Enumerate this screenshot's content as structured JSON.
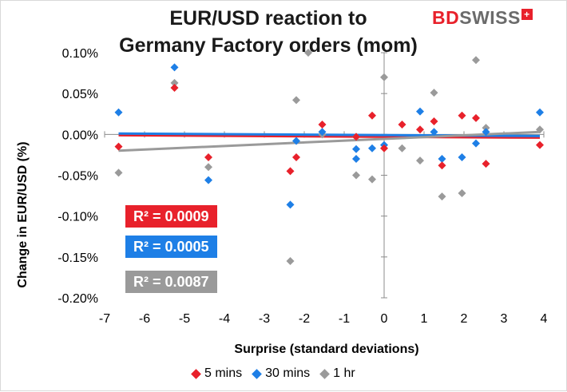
{
  "title_line1": "EUR/USD reaction to",
  "title_line2": "Germany Factory orders (mom)",
  "logo": {
    "bd": "BD",
    "swiss": "SWISS",
    "plus": "+"
  },
  "r2_labels": [
    {
      "text": "R² = 0.0009",
      "color": "#e8212b"
    },
    {
      "text": "R² = 0.0005",
      "color": "#1e7fe6"
    },
    {
      "text": "R² = 0.0087",
      "color": "#9a9a9a"
    }
  ],
  "chart_data": {
    "type": "scatter",
    "title": "EUR/USD reaction to Germany Factory orders (mom)",
    "xlabel": "Surprise (standard deviations)",
    "ylabel": "Change in EUR/USD  (%)",
    "xlim": [
      -7,
      4
    ],
    "ylim": [
      -0.2,
      0.1
    ],
    "xticks": [
      "-7",
      "-6",
      "-5",
      "-4",
      "-3",
      "-2",
      "-1",
      "0",
      "1",
      "2",
      "3",
      "4"
    ],
    "yticks": [
      "0.10%",
      "0.05%",
      "0.00%",
      "-0.05%",
      "-0.10%",
      "-0.15%",
      "-0.20%"
    ],
    "legend_position": "bottom",
    "grid": false,
    "series": [
      {
        "name": "5 mins",
        "color": "#e8212b",
        "points": [
          [
            -6.65,
            -0.015
          ],
          [
            -5.25,
            0.057
          ],
          [
            -4.4,
            -0.028
          ],
          [
            -2.35,
            -0.045
          ],
          [
            -2.2,
            -0.028
          ],
          [
            -1.55,
            0.012
          ],
          [
            -0.7,
            -0.003
          ],
          [
            -0.3,
            0.023
          ],
          [
            0.0,
            -0.017
          ],
          [
            0.45,
            0.012
          ],
          [
            0.9,
            0.006
          ],
          [
            1.25,
            0.016
          ],
          [
            1.45,
            -0.038
          ],
          [
            1.95,
            0.023
          ],
          [
            2.3,
            0.02
          ],
          [
            2.55,
            -0.036
          ],
          [
            3.9,
            -0.013
          ]
        ],
        "trend": [
          [
            -6.65,
            -0.001
          ],
          [
            3.9,
            -0.004
          ]
        ]
      },
      {
        "name": "30 mins",
        "color": "#1e7fe6",
        "points": [
          [
            -6.65,
            0.027
          ],
          [
            -5.25,
            0.082
          ],
          [
            -4.4,
            -0.056
          ],
          [
            -2.35,
            -0.086
          ],
          [
            -2.2,
            -0.008
          ],
          [
            -1.55,
            0.003
          ],
          [
            -0.7,
            -0.03
          ],
          [
            -0.7,
            -0.018
          ],
          [
            -0.3,
            -0.017
          ],
          [
            0.0,
            -0.013
          ],
          [
            0.9,
            0.028
          ],
          [
            1.25,
            0.003
          ],
          [
            1.45,
            -0.03
          ],
          [
            1.95,
            -0.028
          ],
          [
            2.3,
            -0.011
          ],
          [
            2.55,
            0.003
          ],
          [
            3.9,
            0.027
          ]
        ],
        "trend": [
          [
            -6.65,
            0.001
          ],
          [
            3.9,
            -0.002
          ]
        ]
      },
      {
        "name": "1 hr",
        "color": "#9a9a9a",
        "points": [
          [
            -6.65,
            -0.047
          ],
          [
            -5.25,
            0.063
          ],
          [
            -4.4,
            -0.04
          ],
          [
            -2.35,
            -0.155
          ],
          [
            -2.2,
            0.042
          ],
          [
            -1.9,
            0.1
          ],
          [
            -1.55,
            0.0
          ],
          [
            -0.7,
            -0.05
          ],
          [
            -0.7,
            -0.003
          ],
          [
            -0.3,
            -0.055
          ],
          [
            0.0,
            0.07
          ],
          [
            0.45,
            -0.017
          ],
          [
            0.9,
            -0.032
          ],
          [
            1.25,
            0.051
          ],
          [
            1.45,
            -0.076
          ],
          [
            1.95,
            -0.072
          ],
          [
            2.3,
            0.091
          ],
          [
            2.55,
            0.008
          ],
          [
            3.9,
            0.006
          ]
        ],
        "trend": [
          [
            -6.65,
            -0.02
          ],
          [
            3.9,
            0.003
          ]
        ]
      }
    ]
  }
}
